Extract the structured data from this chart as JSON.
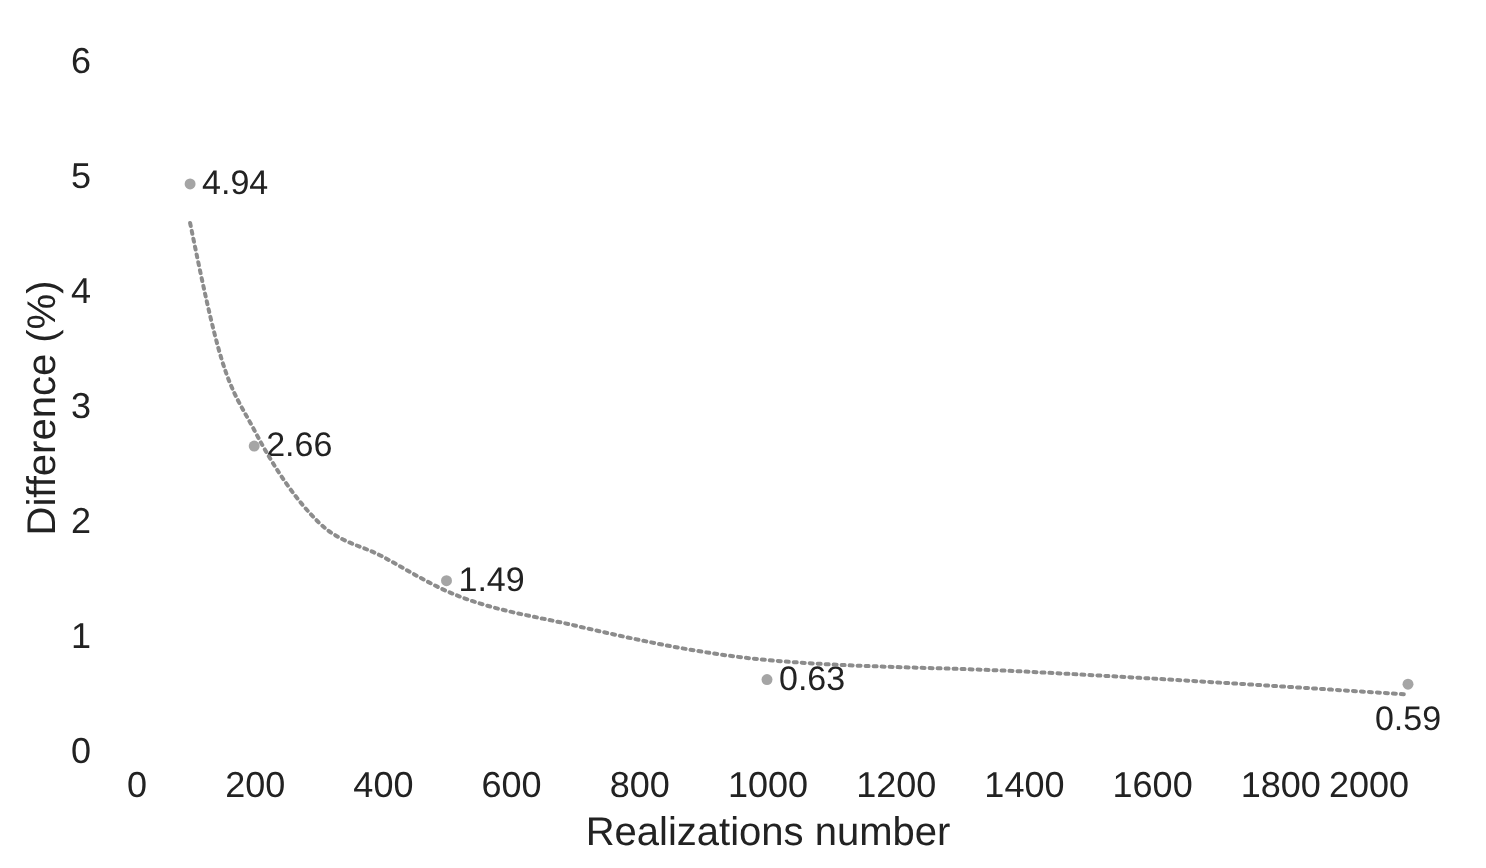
{
  "chart_data": {
    "type": "scatter",
    "xlabel": "Realizations number",
    "ylabel": "Difference (%)",
    "xlim": [
      0,
      2000
    ],
    "xticks": [
      0,
      200,
      400,
      600,
      800,
      1000,
      1200,
      1400,
      1600,
      1800,
      2000
    ],
    "ylim": [
      0,
      6
    ],
    "yticks": [
      0,
      1,
      2,
      3,
      4,
      5,
      6
    ],
    "grid": false,
    "marker": "circle",
    "x": [
      100,
      200,
      500,
      1000,
      2000
    ],
    "series": [
      {
        "color": "#7f7f7f",
        "values": [
          4.94,
          2.66,
          1.49,
          0.63,
          0.59
        ],
        "value_labels": [
          "4.94",
          "2.66",
          "1.49",
          "0.63",
          "0.59"
        ]
      },
      {
        "type": "line",
        "color": "#8c8c8c",
        "line_style": "dotted",
        "marker": "none",
        "x": [
          100,
          150,
          200,
          300,
          400,
          500,
          700,
          1000,
          1400,
          2000
        ],
        "values": [
          4.6,
          3.4,
          2.8,
          2.0,
          1.7,
          1.4,
          1.1,
          0.8,
          0.7,
          0.5
        ]
      }
    ]
  }
}
